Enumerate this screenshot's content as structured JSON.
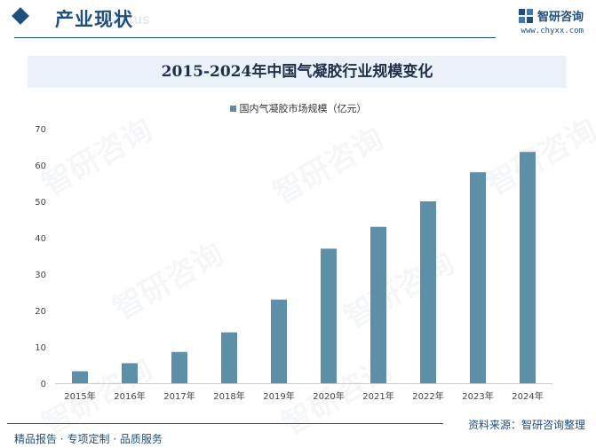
{
  "header": {
    "section_title": "产业现状",
    "section_subtitle": "Status",
    "brand_name": "智研咨询",
    "brand_url": "www.chyxx.com"
  },
  "chart_data": {
    "type": "bar",
    "title": "2015-2024年中国气凝胶行业规模变化",
    "categories": [
      "2015年",
      "2016年",
      "2017年",
      "2018年",
      "2019年",
      "2020年",
      "2021年",
      "2022年",
      "2023年",
      "2024年"
    ],
    "series": [
      {
        "name": "国内气凝胶市场规模（亿元）",
        "values": [
          3.3,
          5.5,
          8.6,
          14,
          23,
          37,
          43,
          50,
          58,
          63.6
        ]
      }
    ],
    "ylim": [
      0,
      70
    ],
    "yticks": [
      0,
      10,
      20,
      30,
      40,
      50,
      60,
      70
    ],
    "xlabel": "",
    "ylabel": "",
    "grid": false,
    "legend": "top-center",
    "bar_color": "#5e8fa9"
  },
  "footer": {
    "source": "资料来源：智研咨询整理",
    "tagline": "精品报告 · 专项定制 · 品质服务"
  },
  "watermark": "智研咨询"
}
